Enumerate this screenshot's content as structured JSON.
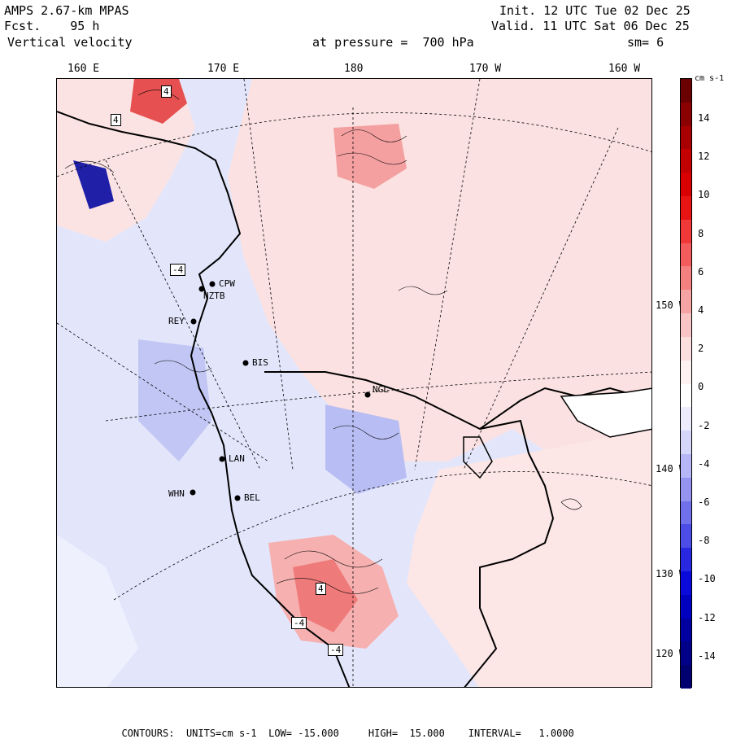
{
  "header": {
    "model": "AMPS 2.67-km MPAS",
    "forecast": "Fcst.    95 h",
    "field": "Vertical velocity",
    "init": "Init. 12 UTC Tue 02 Dec 25",
    "valid": "Valid. 11 UTC Sat 06 Dec 25",
    "pressure": "at pressure =  700 hPa",
    "smoothing": "sm= 6"
  },
  "longitude_labels": [
    "160 E",
    "170 E",
    "180",
    "170 W",
    "160 W"
  ],
  "latitude_labels": [
    "150 W",
    "140 W",
    "130 W",
    "120 W"
  ],
  "colorbar": {
    "units": "cm s-1",
    "labels": [
      "14",
      "12",
      "10",
      "8",
      "6",
      "4",
      "2",
      "0",
      "-2",
      "-4",
      "-6",
      "-8",
      "-10",
      "-12",
      "-14"
    ],
    "colors": [
      "#6b0000",
      "#8b0000",
      "#a80000",
      "#c20000",
      "#d80000",
      "#e81414",
      "#f03838",
      "#f25c5c",
      "#f48080",
      "#f6a3a3",
      "#f9c4c4",
      "#fbdede",
      "#fdf1f1",
      "#ffffff",
      "#ececfd",
      "#d6d6fb",
      "#b6b6f6",
      "#9494f0",
      "#7070eb",
      "#4c4ce6",
      "#2828e0",
      "#0a0adb",
      "#0000c0",
      "#0000a0",
      "#000088",
      "#000070"
    ]
  },
  "stations": [
    "CPW",
    "NZTB",
    "REY",
    "BIS",
    "NGL",
    "LAN",
    "WHN",
    "BEL"
  ],
  "contour_labels": [
    "4",
    "4",
    "-4",
    "-4",
    "4",
    "-4"
  ],
  "footer": {
    "contours": "CONTOURS:",
    "units": "UNITS=cm s-1",
    "low": "LOW= -15.000",
    "high": "HIGH=  15.000",
    "interval": "INTERVAL=   1.0000"
  }
}
